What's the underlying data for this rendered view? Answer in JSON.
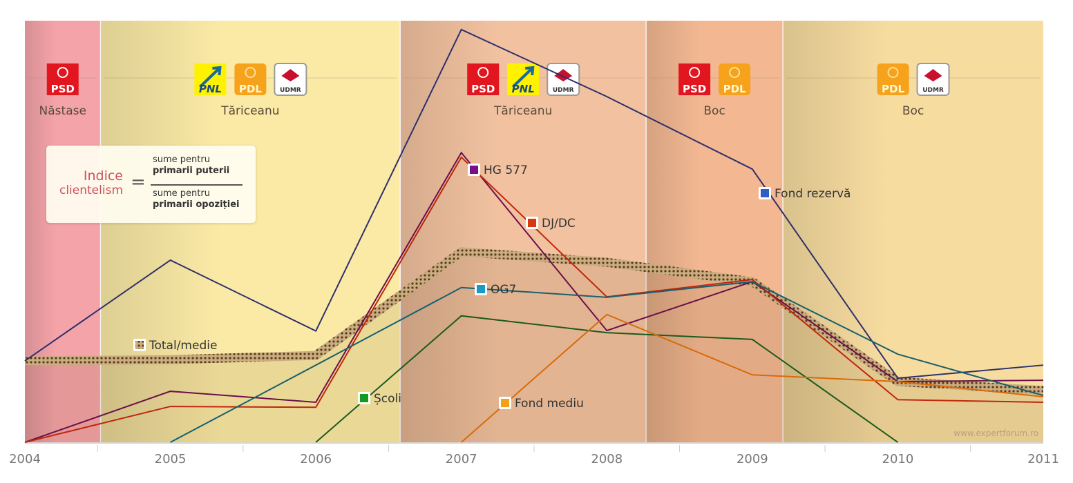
{
  "chart_data": {
    "type": "line",
    "title": "",
    "x": [
      2004,
      2005,
      2006,
      2007,
      2008,
      2009,
      2010,
      2011
    ],
    "xlabel": "",
    "ylabel": "",
    "ylim": [
      0,
      100
    ],
    "grid": false,
    "series": [
      {
        "name": "Fond rezervă",
        "color": "#2e2f6b",
        "values": [
          19.3,
          43.2,
          26.4,
          97.9,
          82.0,
          64.8,
          15.2,
          18.3
        ]
      },
      {
        "name": "HG 577",
        "color": "#6b0f4a",
        "values": [
          0,
          12.1,
          9.5,
          68.7,
          26.5,
          38.1,
          14.4,
          14.7
        ]
      },
      {
        "name": "DJ/DC",
        "color": "#c0260c",
        "values": [
          0,
          8.5,
          8.3,
          67.6,
          34.5,
          38.6,
          10.1,
          9.5
        ]
      },
      {
        "name": "OG7",
        "color": "#17606e",
        "values": [
          null,
          0,
          18.3,
          36.7,
          34.4,
          38.1,
          20.9,
          11.1
        ]
      },
      {
        "name": "Școli",
        "color": "#1d5a1d",
        "values": [
          null,
          null,
          0,
          30.0,
          26.0,
          24.4,
          0,
          null
        ]
      },
      {
        "name": "Fond mediu",
        "color": "#d96a0a",
        "values": [
          null,
          null,
          null,
          0,
          30.3,
          16.0,
          14.4,
          10.8
        ]
      },
      {
        "name": "Total/medie",
        "color": "#6b4a2a",
        "values": [
          19.3,
          19.6,
          20.6,
          45.2,
          42.7,
          38.1,
          14.4,
          12.3
        ]
      }
    ],
    "marker_colors": [
      "#2f5fc4",
      "#7a0f8a",
      "#d8380c",
      "#1a9ac8",
      "#159a20",
      "#f2a21a",
      "#888888"
    ],
    "governments": [
      {
        "pm": "Năstase",
        "from": 2004,
        "to": 2004.52,
        "color": "#f4a3a8",
        "parties": [
          "PSD"
        ]
      },
      {
        "pm": "Tăriceanu",
        "from": 2004.52,
        "to": 2006.58,
        "color": "#fbeaa6",
        "parties": [
          "PNL",
          "PDL",
          "UDMR"
        ]
      },
      {
        "pm": "Tăriceanu",
        "from": 2006.58,
        "to": 2008.27,
        "color": "#f2c2a0",
        "parties": [
          "PSD",
          "PNL",
          "UDMR"
        ]
      },
      {
        "pm": "Boc",
        "from": 2008.27,
        "to": 2009.21,
        "color": "#f3b892",
        "parties": [
          "PSD",
          "PDL"
        ]
      },
      {
        "pm": "Boc",
        "from": 2009.21,
        "to": 2011,
        "color": "#f7dca0",
        "parties": [
          "PDL",
          "UDMR"
        ]
      }
    ],
    "party_colors": {
      "PSD": "#e2161e",
      "PNL": "#fff200",
      "PDL": "#f7a21b",
      "UDMR": "#ffffff"
    },
    "watermark": "www.expertforum.ro"
  },
  "formula": {
    "left1": "Indice",
    "left2": "clientelism",
    "eq": "=",
    "num1": "sume pentru",
    "num2": "primarii puterii",
    "den1": "sume pentru",
    "den2": "primarii opoziției"
  }
}
